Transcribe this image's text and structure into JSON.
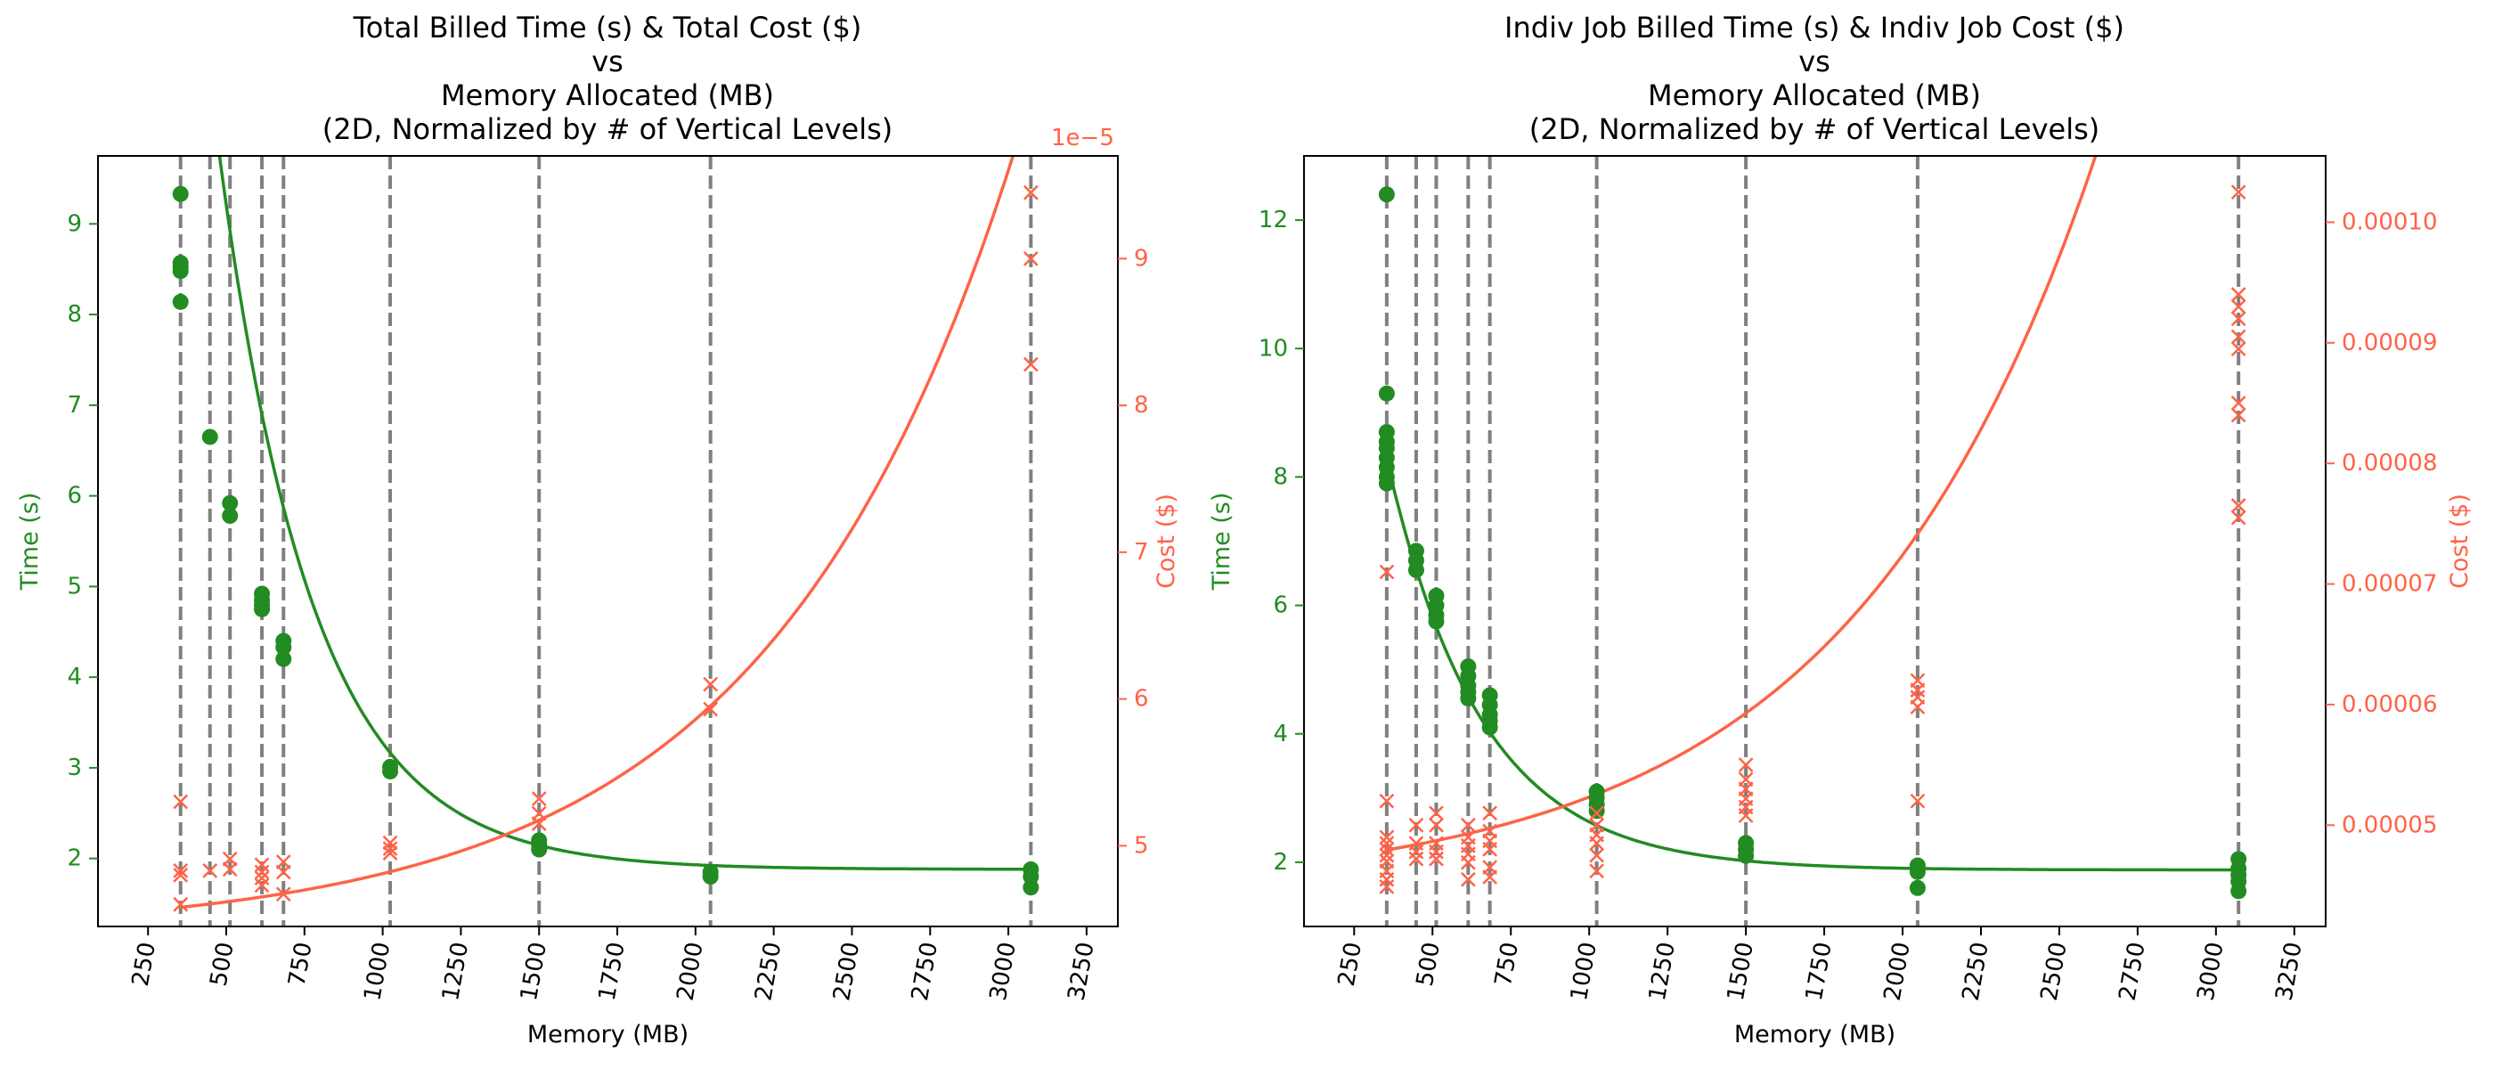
{
  "figure": {
    "background": "#ffffff"
  },
  "colors": {
    "time": "#228B22",
    "cost": "#FF6347",
    "vline": "#808080",
    "axis": "#000000"
  },
  "chart_data": [
    {
      "type": "scatter",
      "title_lines": [
        "Total Billed Time (s) & Total Cost ($)",
        "vs",
        "Memory Allocated (MB)",
        "(2D, Normalized by # of Vertical Levels)"
      ],
      "xlabel": "Memory (MB)",
      "ylabel_left": "Time (s)",
      "ylabel_right": "Cost ($)",
      "offset_text": "1e−5",
      "xlim": [
        90,
        3350
      ],
      "ylim_left": [
        1.25,
        9.75
      ],
      "ylim_right": [
        4.45,
        9.7
      ],
      "x_ticks": [
        250,
        500,
        750,
        1000,
        1250,
        1500,
        1750,
        2000,
        2250,
        2500,
        2750,
        3000,
        3250
      ],
      "x_tick_labels": [
        "250",
        "500",
        "750",
        "1000",
        "1250",
        "1500",
        "1750",
        "2000",
        "2250",
        "2500",
        "2750",
        "3000",
        "3250"
      ],
      "left_ticks": [
        2,
        3,
        4,
        5,
        6,
        7,
        8,
        9
      ],
      "left_tick_labels": [
        "2",
        "3",
        "4",
        "5",
        "6",
        "7",
        "8",
        "9"
      ],
      "right_ticks": [
        5,
        6,
        7,
        8,
        9
      ],
      "right_tick_labels": [
        "5",
        "6",
        "7",
        "8",
        "9"
      ],
      "vlines": [
        354,
        448,
        512,
        614,
        683,
        1024,
        1500,
        2048,
        3072
      ],
      "time_points": [
        [
          354,
          9.33
        ],
        [
          354,
          8.57
        ],
        [
          354,
          8.53
        ],
        [
          354,
          8.48
        ],
        [
          354,
          8.14
        ],
        [
          448,
          6.65
        ],
        [
          512,
          5.92
        ],
        [
          512,
          5.78
        ],
        [
          614,
          4.92
        ],
        [
          614,
          4.85
        ],
        [
          614,
          4.8
        ],
        [
          614,
          4.75
        ],
        [
          683,
          4.4
        ],
        [
          683,
          4.33
        ],
        [
          683,
          4.2
        ],
        [
          1024,
          3.01
        ],
        [
          1024,
          2.96
        ],
        [
          1500,
          2.2
        ],
        [
          1500,
          2.15
        ],
        [
          1500,
          2.1
        ],
        [
          2048,
          1.85
        ],
        [
          2048,
          1.8
        ],
        [
          3072,
          1.88
        ],
        [
          3072,
          1.8
        ],
        [
          3072,
          1.68
        ]
      ],
      "cost_points": [
        [
          354,
          5.3
        ],
        [
          354,
          4.83
        ],
        [
          354,
          4.8
        ],
        [
          354,
          4.6
        ],
        [
          448,
          4.83
        ],
        [
          512,
          4.91
        ],
        [
          512,
          4.84
        ],
        [
          614,
          4.87
        ],
        [
          614,
          4.82
        ],
        [
          614,
          4.78
        ],
        [
          614,
          4.73
        ],
        [
          683,
          4.89
        ],
        [
          683,
          4.82
        ],
        [
          683,
          4.67
        ],
        [
          1024,
          5.02
        ],
        [
          1024,
          4.98
        ],
        [
          1024,
          4.95
        ],
        [
          1500,
          5.32
        ],
        [
          1500,
          5.22
        ],
        [
          1500,
          5.15
        ],
        [
          2048,
          6.1
        ],
        [
          2048,
          5.93
        ],
        [
          3072,
          9.45
        ],
        [
          3072,
          9.0
        ],
        [
          3072,
          8.28
        ]
      ],
      "time_fit": {
        "a": 1.88,
        "b": 11.9,
        "k": 0.00332,
        "x0": 354
      },
      "cost_fit": {
        "a": 4.4,
        "b": 0.1806,
        "k": 0.00127,
        "x0": 354
      }
    },
    {
      "type": "scatter",
      "title_lines": [
        "Indiv Job Billed Time (s) & Indiv Job Cost ($)",
        "vs",
        "Memory Allocated (MB)",
        "(2D, Normalized by # of Vertical Levels)"
      ],
      "xlabel": "Memory (MB)",
      "ylabel_left": "Time (s)",
      "ylabel_right": "Cost ($)",
      "offset_text": "",
      "xlim": [
        90,
        3350
      ],
      "ylim_left": [
        1.0,
        13.0
      ],
      "ylim_right": [
        4.16e-05,
        0.0001055
      ],
      "x_ticks": [
        250,
        500,
        750,
        1000,
        1250,
        1500,
        1750,
        2000,
        2250,
        2500,
        2750,
        3000,
        3250
      ],
      "x_tick_labels": [
        "250",
        "500",
        "750",
        "1000",
        "1250",
        "1500",
        "1750",
        "2000",
        "2250",
        "2500",
        "2750",
        "3000",
        "3250"
      ],
      "left_ticks": [
        2,
        4,
        6,
        8,
        10,
        12
      ],
      "left_tick_labels": [
        "2",
        "4",
        "6",
        "8",
        "10",
        "12"
      ],
      "right_ticks": [
        5e-05,
        6e-05,
        7e-05,
        8e-05,
        9e-05,
        0.0001
      ],
      "right_tick_labels": [
        "0.00005",
        "0.00006",
        "0.00007",
        "0.00008",
        "0.00009",
        "0.00010"
      ],
      "vlines": [
        354,
        448,
        512,
        614,
        683,
        1024,
        1500,
        2048,
        3072
      ],
      "time_points": [
        [
          354,
          12.4
        ],
        [
          354,
          9.3
        ],
        [
          354,
          8.7
        ],
        [
          354,
          8.55
        ],
        [
          354,
          8.45
        ],
        [
          354,
          8.3
        ],
        [
          354,
          8.15
        ],
        [
          354,
          8.0
        ],
        [
          354,
          7.9
        ],
        [
          448,
          6.85
        ],
        [
          448,
          6.7
        ],
        [
          448,
          6.55
        ],
        [
          512,
          6.15
        ],
        [
          512,
          6.0
        ],
        [
          512,
          5.85
        ],
        [
          512,
          5.75
        ],
        [
          614,
          5.05
        ],
        [
          614,
          4.9
        ],
        [
          614,
          4.75
        ],
        [
          614,
          4.65
        ],
        [
          614,
          4.55
        ],
        [
          683,
          4.6
        ],
        [
          683,
          4.45
        ],
        [
          683,
          4.3
        ],
        [
          683,
          4.2
        ],
        [
          683,
          4.1
        ],
        [
          1024,
          3.1
        ],
        [
          1024,
          3.0
        ],
        [
          1024,
          2.9
        ],
        [
          1024,
          2.8
        ],
        [
          1500,
          2.3
        ],
        [
          1500,
          2.2
        ],
        [
          1500,
          2.1
        ],
        [
          2048,
          1.95
        ],
        [
          2048,
          1.85
        ],
        [
          2048,
          1.6
        ],
        [
          3072,
          2.05
        ],
        [
          3072,
          1.9
        ],
        [
          3072,
          1.8
        ],
        [
          3072,
          1.7
        ],
        [
          3072,
          1.55
        ]
      ],
      "cost_points": [
        [
          354,
          7.1e-05
        ],
        [
          354,
          5.2e-05
        ],
        [
          354,
          4.9e-05
        ],
        [
          354,
          4.85e-05
        ],
        [
          354,
          4.8e-05
        ],
        [
          354,
          4.75e-05
        ],
        [
          354,
          4.7e-05
        ],
        [
          354,
          4.62e-05
        ],
        [
          354,
          4.55e-05
        ],
        [
          354,
          4.49e-05
        ],
        [
          448,
          5e-05
        ],
        [
          448,
          4.85e-05
        ],
        [
          448,
          4.78e-05
        ],
        [
          448,
          4.72e-05
        ],
        [
          512,
          5.1e-05
        ],
        [
          512,
          5e-05
        ],
        [
          512,
          4.85e-05
        ],
        [
          512,
          4.78e-05
        ],
        [
          512,
          4.72e-05
        ],
        [
          614,
          5e-05
        ],
        [
          614,
          4.9e-05
        ],
        [
          614,
          4.83e-05
        ],
        [
          614,
          4.76e-05
        ],
        [
          614,
          4.69e-05
        ],
        [
          614,
          4.55e-05
        ],
        [
          683,
          5.1e-05
        ],
        [
          683,
          4.95e-05
        ],
        [
          683,
          4.87e-05
        ],
        [
          683,
          4.8e-05
        ],
        [
          683,
          4.65e-05
        ],
        [
          683,
          4.57e-05
        ],
        [
          1024,
          5.1e-05
        ],
        [
          1024,
          5e-05
        ],
        [
          1024,
          4.92e-05
        ],
        [
          1024,
          4.85e-05
        ],
        [
          1024,
          4.75e-05
        ],
        [
          1024,
          4.62e-05
        ],
        [
          1500,
          5.5e-05
        ],
        [
          1500,
          5.38e-05
        ],
        [
          1500,
          5.3e-05
        ],
        [
          1500,
          5.22e-05
        ],
        [
          1500,
          5.15e-05
        ],
        [
          1500,
          5.08e-05
        ],
        [
          2048,
          6.2e-05
        ],
        [
          2048,
          6.12e-05
        ],
        [
          2048,
          6.06e-05
        ],
        [
          2048,
          5.98e-05
        ],
        [
          2048,
          5.2e-05
        ],
        [
          3072,
          0.0001025
        ],
        [
          3072,
          9.4e-05
        ],
        [
          3072,
          9.3e-05
        ],
        [
          3072,
          9.2e-05
        ],
        [
          3072,
          9.05e-05
        ],
        [
          3072,
          8.95e-05
        ],
        [
          3072,
          8.5e-05
        ],
        [
          3072,
          8.4e-05
        ],
        [
          3072,
          7.65e-05
        ],
        [
          3072,
          7.55e-05
        ]
      ],
      "time_fit": {
        "a": 1.88,
        "b": 6.4,
        "k": 0.00332,
        "x0": 354
      },
      "cost_fit": {
        "a": 4.45e-05,
        "b": 3.45e-06,
        "k": 0.00127,
        "x0": 354
      }
    }
  ]
}
